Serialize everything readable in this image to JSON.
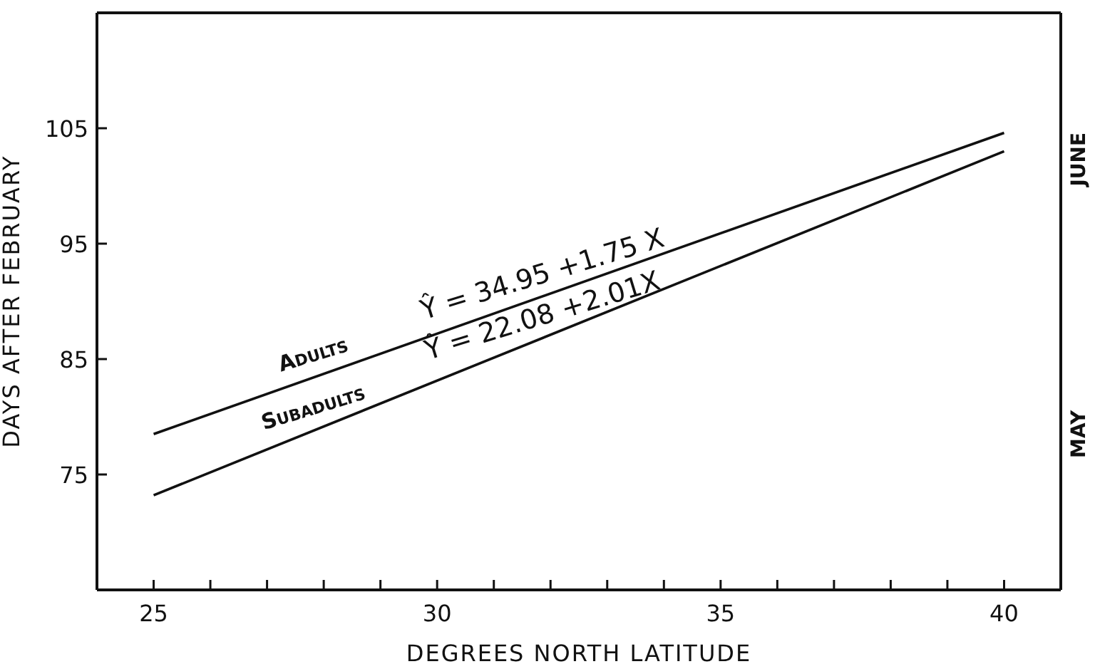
{
  "chart_data": {
    "type": "line",
    "xlabel": "DEGREES NORTH LATITUDE",
    "ylabel": "DAYS AFTER FEBRUARY",
    "x": [
      25,
      40
    ],
    "series": [
      {
        "name": "Adults",
        "color": "#111111",
        "values": [
          78.5,
          104.6
        ]
      },
      {
        "name": "Subadults",
        "color": "#111111",
        "values": [
          73.2,
          103.0
        ]
      }
    ],
    "xlim": [
      24,
      41
    ],
    "xticks": [
      25,
      {
        "value": 26,
        "label": null
      },
      {
        "value": 27,
        "label": null
      },
      {
        "value": 28,
        "label": null
      },
      {
        "value": 29,
        "label": null
      },
      30,
      {
        "value": 31,
        "label": null
      },
      {
        "value": 32,
        "label": null
      },
      {
        "value": 33,
        "label": null
      },
      {
        "value": 34,
        "label": null
      },
      35,
      {
        "value": 36,
        "label": null
      },
      {
        "value": 37,
        "label": null
      },
      {
        "value": 38,
        "label": null
      },
      {
        "value": 39,
        "label": null
      },
      40
    ],
    "ylim": [
      65,
      115
    ],
    "yticks": [
      75,
      85,
      95,
      105
    ],
    "annotations": [
      "Ŷ = 34.95 +1.75 X",
      "Ŷ = 22.08 +2.01X",
      "MAY",
      "JUNE"
    ],
    "grid": false,
    "legend": false,
    "marker": "none",
    "line_style": "solid"
  }
}
